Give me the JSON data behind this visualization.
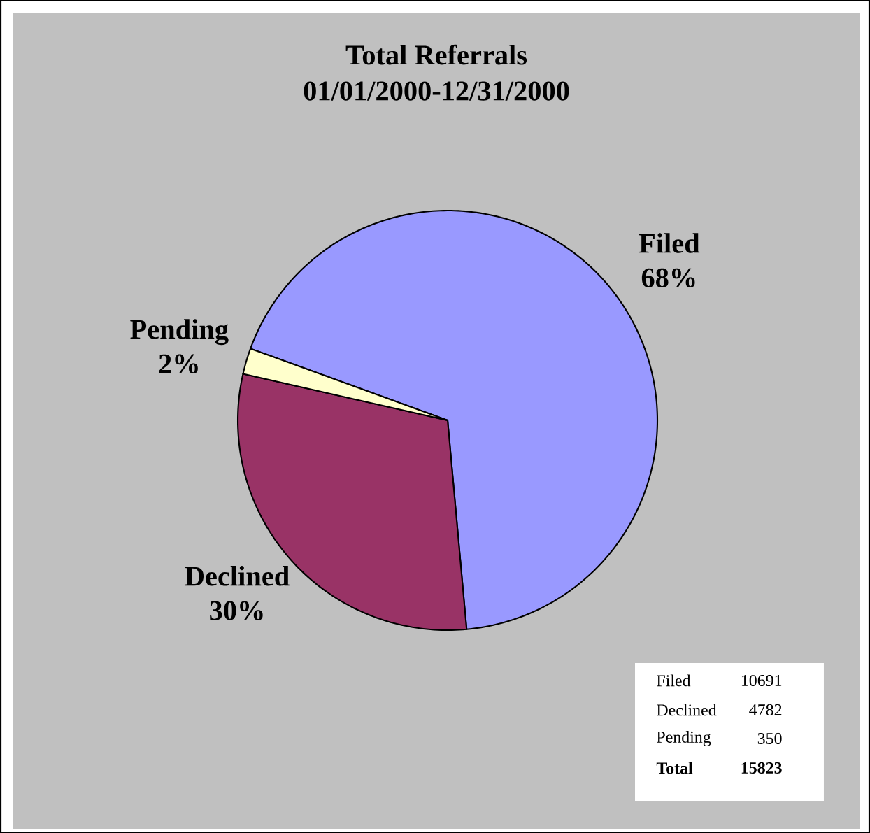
{
  "chart_data": {
    "type": "pie",
    "title": "Total Referrals",
    "subtitle": "01/01/2000-12/31/2000",
    "categories": [
      "Filed",
      "Declined",
      "Pending"
    ],
    "values": [
      68,
      30,
      2
    ],
    "value_labels": [
      "68%",
      "30%",
      "2%"
    ],
    "colors": [
      "#9999ff",
      "#993366",
      "#ffffcc"
    ],
    "totals": [
      "15823"
    ],
    "annotations": [
      "10691",
      "4782",
      "350",
      "Total"
    ]
  }
}
